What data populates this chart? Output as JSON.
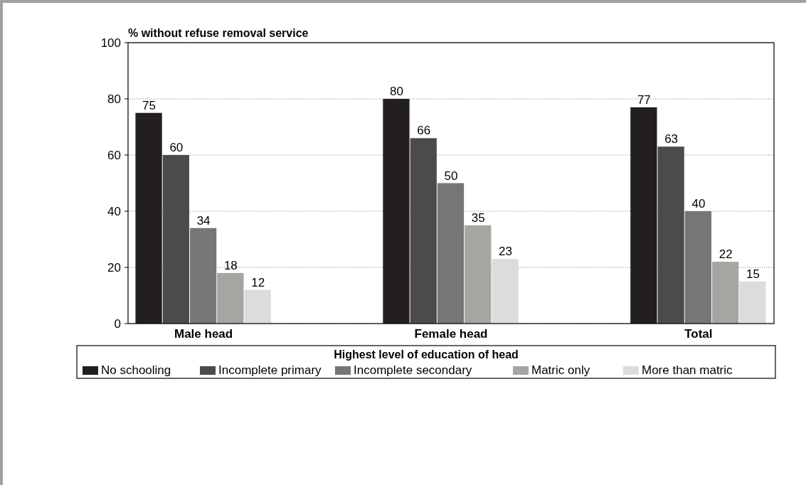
{
  "chart_data": {
    "type": "bar",
    "title": "% without refuse removal service",
    "legend_title": "Highest level of education of head",
    "categories": [
      "Male head",
      "Female head",
      "Total"
    ],
    "series": [
      {
        "name": "No schooling",
        "color": "#231f20",
        "values": [
          75,
          80,
          77
        ]
      },
      {
        "name": "Incomplete primary",
        "color": "#4d4a4a",
        "values": [
          60,
          66,
          63
        ]
      },
      {
        "name": "Incomplete secondary",
        "color": "#777575",
        "values": [
          34,
          50,
          40
        ]
      },
      {
        "name": "Matric only",
        "color": "#a5a5a2",
        "values": [
          18,
          35,
          22
        ]
      },
      {
        "name": "More than matric",
        "color": "#dcdcdc",
        "values": [
          12,
          23,
          15
        ]
      }
    ],
    "ylim": [
      0,
      100
    ],
    "yticks": [
      0,
      20,
      40,
      60,
      80,
      100
    ],
    "grid": "y",
    "legend": "bottom",
    "data_labels": true
  }
}
